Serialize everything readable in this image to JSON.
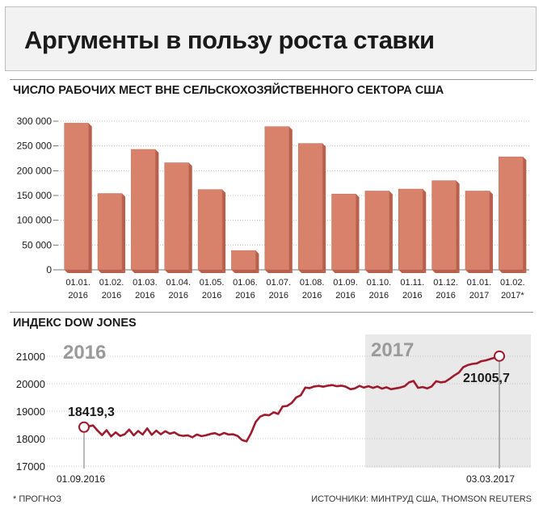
{
  "title": "Аргументы в пользу роста ставки",
  "footnote": "* ПРОГНОЗ",
  "sources": "ИСТОЧНИКИ: МИНТРУД США, THOMSON REUTERS",
  "colors": {
    "bar": "#d8826b",
    "bar_side": "#b8604c",
    "line": "#9e1b2e",
    "shade": "#e9e9e9"
  },
  "chart_data": [
    {
      "type": "bar",
      "title": "ЧИСЛО РАБОЧИХ МЕСТ ВНЕ СЕЛЬСКОХОЗЯЙСТВЕННОГО СЕКТОРА США",
      "ylim": [
        0,
        300000
      ],
      "yticks": [
        0,
        50000,
        100000,
        150000,
        200000,
        250000,
        300000
      ],
      "ytick_labels": [
        "0",
        "50 000",
        "100 000",
        "150 000",
        "200 000",
        "250 000",
        "300 000"
      ],
      "categories": [
        "01.01.|2016",
        "01.02.|2016",
        "01.03.|2016",
        "01.04.|2016",
        "01.05.|2016",
        "01.06.|2016",
        "01.07.|2016",
        "01.08.|2016",
        "01.09.|2016",
        "01.10.|2016",
        "01.11.|2016",
        "01.12.|2016",
        "01.01.|2017",
        "01.02.|2017*"
      ],
      "values": [
        296000,
        154000,
        243000,
        216000,
        162000,
        39000,
        289000,
        255000,
        153000,
        159000,
        163000,
        180000,
        159000,
        228000
      ]
    },
    {
      "type": "line",
      "title": "ИНДЕКС DOW JONES",
      "ylim": [
        17000,
        21300
      ],
      "yticks": [
        17000,
        18000,
        19000,
        20000,
        21000
      ],
      "ytick_labels": [
        "17000",
        "18000",
        "19000",
        "20000",
        "21000"
      ],
      "shaded_label_left": "2016",
      "shaded_label_right": "2017",
      "start_label": "18419,3",
      "end_label": "21005,7",
      "start_date": "01.09.2016",
      "end_date": "03.03.2017",
      "x": [
        0,
        4,
        6,
        8,
        10,
        12,
        14,
        16,
        18,
        20,
        22,
        24,
        26,
        28,
        30,
        32,
        34,
        36,
        38,
        40,
        42,
        44,
        46,
        48,
        50,
        52,
        54,
        56,
        58,
        60,
        62,
        64,
        66,
        68,
        70,
        72,
        74,
        76,
        78,
        80,
        82,
        84,
        86,
        88,
        90,
        92,
        94,
        96,
        98,
        100,
        102,
        104,
        106,
        108,
        110,
        112,
        114,
        116,
        118,
        120,
        122,
        124,
        126,
        128,
        130,
        132,
        134,
        136,
        138,
        140,
        142,
        144,
        146,
        148,
        150,
        152,
        154,
        156,
        158,
        160,
        162,
        164,
        166,
        168,
        170,
        172,
        174,
        176,
        178,
        180,
        182,
        184
      ],
      "values": [
        18419,
        18480,
        18290,
        18130,
        18310,
        18080,
        18230,
        18100,
        18160,
        18330,
        18120,
        18280,
        18150,
        18370,
        18140,
        18290,
        18160,
        18270,
        18180,
        18230,
        18130,
        18100,
        18120,
        18050,
        18150,
        18090,
        18120,
        18170,
        18200,
        18130,
        18210,
        18150,
        18160,
        18100,
        17950,
        17900,
        18200,
        18600,
        18800,
        18870,
        18850,
        18960,
        18900,
        19170,
        19190,
        19300,
        19500,
        19580,
        19860,
        19840,
        19900,
        19920,
        19890,
        19930,
        19950,
        19910,
        19930,
        19890,
        19800,
        19830,
        19920,
        19860,
        19910,
        19850,
        19900,
        19820,
        19870,
        19800,
        19830,
        19860,
        19910,
        20050,
        20100,
        19850,
        19880,
        19830,
        19900,
        20090,
        20050,
        20070,
        20180,
        20300,
        20400,
        20600,
        20680,
        20720,
        20740,
        20820,
        20850,
        20900,
        20950,
        21005
      ]
    }
  ]
}
